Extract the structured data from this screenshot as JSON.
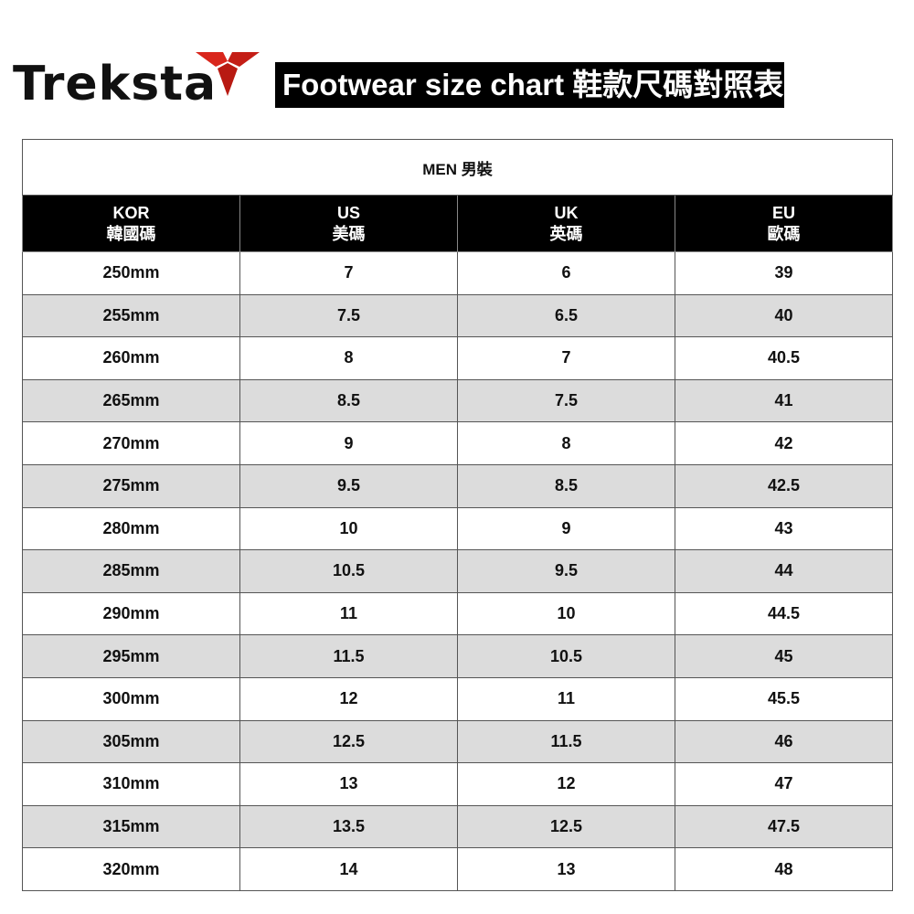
{
  "brand": {
    "name": "Treksta",
    "accent": "#d9261c"
  },
  "title": "Footwear size chart  鞋款尺碼對照表",
  "section": "MEN 男裝",
  "columns": [
    {
      "en": "KOR",
      "zh": "韓國碼"
    },
    {
      "en": "US",
      "zh": "美碼"
    },
    {
      "en": "UK",
      "zh": "英碼"
    },
    {
      "en": "EU",
      "zh": "歐碼"
    }
  ],
  "rows": [
    [
      "250mm",
      "7",
      "6",
      "39"
    ],
    [
      "255mm",
      "7.5",
      "6.5",
      "40"
    ],
    [
      "260mm",
      "8",
      "7",
      "40.5"
    ],
    [
      "265mm",
      "8.5",
      "7.5",
      "41"
    ],
    [
      "270mm",
      "9",
      "8",
      "42"
    ],
    [
      "275mm",
      "9.5",
      "8.5",
      "42.5"
    ],
    [
      "280mm",
      "10",
      "9",
      "43"
    ],
    [
      "285mm",
      "10.5",
      "9.5",
      "44"
    ],
    [
      "290mm",
      "11",
      "10",
      "44.5"
    ],
    [
      "295mm",
      "11.5",
      "10.5",
      "45"
    ],
    [
      "300mm",
      "12",
      "11",
      "45.5"
    ],
    [
      "305mm",
      "12.5",
      "11.5",
      "46"
    ],
    [
      "310mm",
      "13",
      "12",
      "47"
    ],
    [
      "315mm",
      "13.5",
      "12.5",
      "47.5"
    ],
    [
      "320mm",
      "14",
      "13",
      "48"
    ]
  ]
}
